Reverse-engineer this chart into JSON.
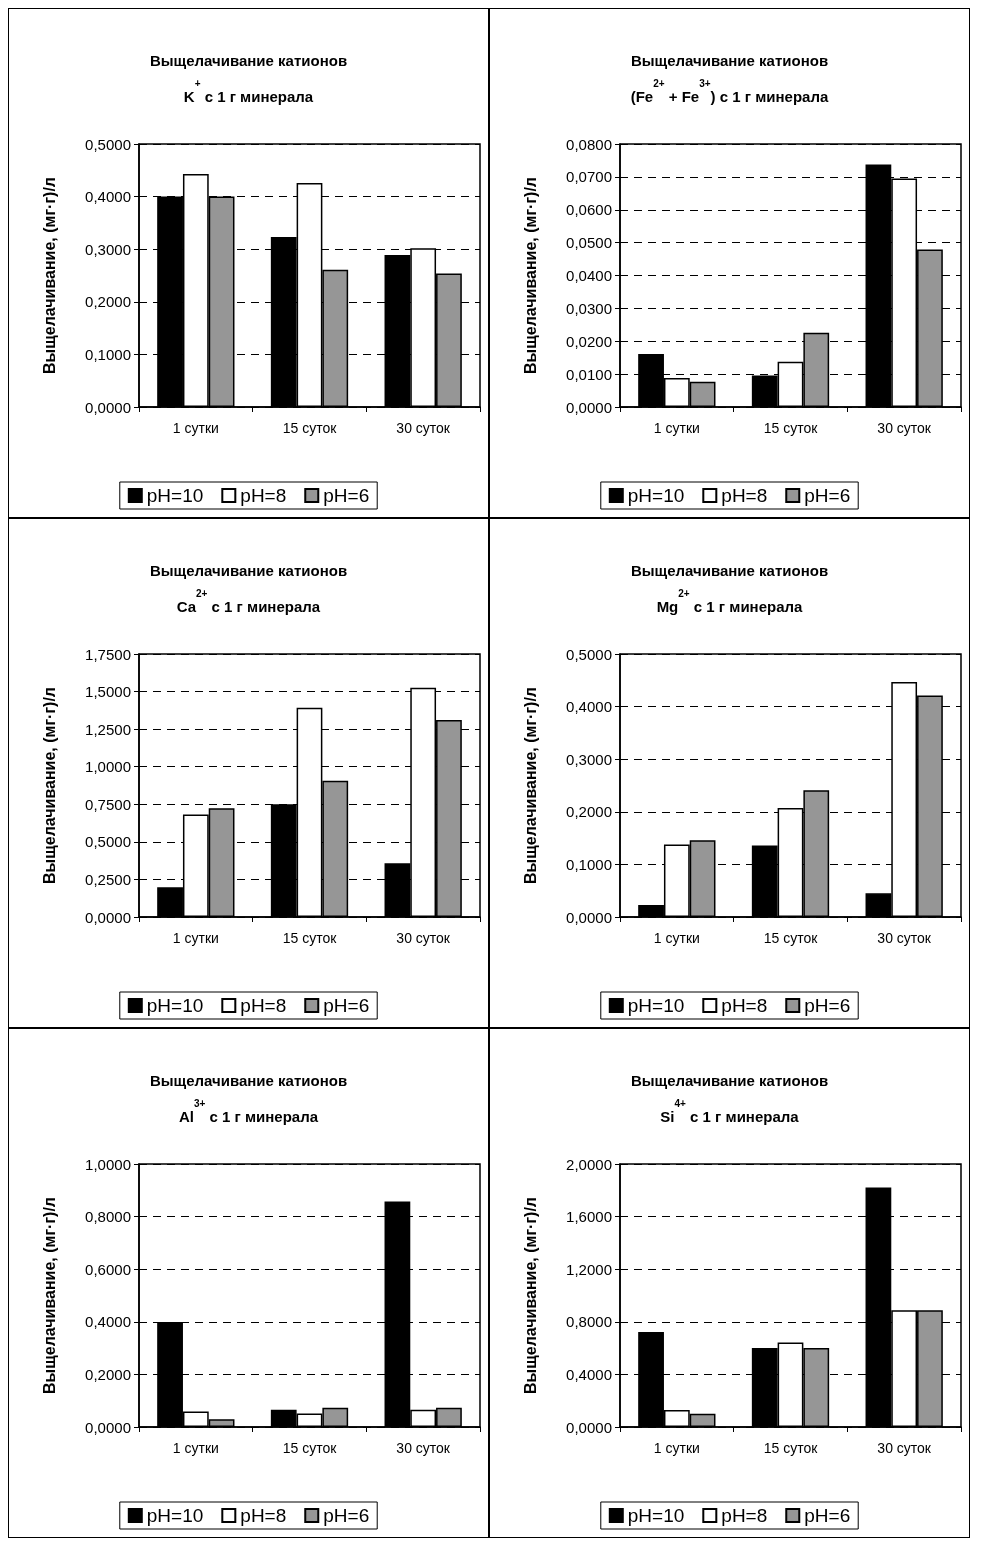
{
  "chart_data": [
    {
      "type": "bar",
      "title": "Выщелачивание катионов\nK$^{+}$ с 1 г минерала",
      "ylabel": "Выщелачивание, (мг·г)/л",
      "categories": [
        "1 сутки",
        "15 суток",
        "30 суток"
      ],
      "series": [
        {
          "name": "pH=10",
          "color": "#000000",
          "values": [
            0.4,
            0.323,
            0.289
          ]
        },
        {
          "name": "pH=8",
          "color": "#ffffff",
          "values": [
            0.443,
            0.426,
            0.302
          ]
        },
        {
          "name": "pH=6",
          "color": "#969696",
          "values": [
            0.4,
            0.261,
            0.254
          ]
        }
      ],
      "ylim": [
        0,
        0.5
      ],
      "yticks": [
        {
          "value": 0,
          "label": "0,0000"
        },
        {
          "value": 0.1,
          "label": "0,1000"
        },
        {
          "value": 0.2,
          "label": "0,2000"
        },
        {
          "value": 0.3,
          "label": "0,3000"
        },
        {
          "value": 0.4,
          "label": "0,4000"
        },
        {
          "value": 0.5,
          "label": "0,5000"
        }
      ],
      "grid": "y",
      "legend": "bottom"
    },
    {
      "type": "bar",
      "title": "Выщелачивание катионов\n(Fe$^{2+}$ + Fe$^{3+}$) с 1 г минерала",
      "ylabel": "Выщелачивание, (мг·г)/л",
      "categories": [
        "1 сутки",
        "15 суток",
        "30 суток"
      ],
      "series": [
        {
          "name": "pH=10",
          "color": "#000000",
          "values": [
            0.0161,
            0.0096,
            0.0738
          ]
        },
        {
          "name": "pH=8",
          "color": "#ffffff",
          "values": [
            0.0088,
            0.0138,
            0.0695
          ]
        },
        {
          "name": "pH=6",
          "color": "#969696",
          "values": [
            0.0077,
            0.0226,
            0.0479
          ]
        }
      ],
      "ylim": [
        0,
        0.08
      ],
      "yticks": [
        {
          "value": 0,
          "label": "0,0000"
        },
        {
          "value": 0.01,
          "label": "0,0100"
        },
        {
          "value": 0.02,
          "label": "0,0200"
        },
        {
          "value": 0.03,
          "label": "0,0300"
        },
        {
          "value": 0.04,
          "label": "0,0400"
        },
        {
          "value": 0.05,
          "label": "0,0500"
        },
        {
          "value": 0.06,
          "label": "0,0600"
        },
        {
          "value": 0.07,
          "label": "0,0700"
        },
        {
          "value": 0.08,
          "label": "0,0800"
        }
      ],
      "grid": "y",
      "legend": "bottom"
    },
    {
      "type": "bar",
      "title": "Выщелачивание катионов\nCa$^{2+}$ с 1 г минерала",
      "ylabel": "Выщелачивание, (мг·г)/л",
      "categories": [
        "1 сутки",
        "15 суток",
        "30 суток"
      ],
      "series": [
        {
          "name": "pH=10",
          "color": "#000000",
          "values": [
            0.198,
            0.75,
            0.357
          ]
        },
        {
          "name": "pH=8",
          "color": "#ffffff",
          "values": [
            0.682,
            1.393,
            1.525
          ]
        },
        {
          "name": "pH=6",
          "color": "#969696",
          "values": [
            0.723,
            0.907,
            1.311
          ]
        }
      ],
      "ylim": [
        0,
        1.75
      ],
      "yticks": [
        {
          "value": 0,
          "label": "0,0000"
        },
        {
          "value": 0.25,
          "label": "0,2500"
        },
        {
          "value": 0.5,
          "label": "0,5000"
        },
        {
          "value": 0.75,
          "label": "0,7500"
        },
        {
          "value": 1,
          "label": "1,0000"
        },
        {
          "value": 1.25,
          "label": "1,2500"
        },
        {
          "value": 1.5,
          "label": "1,5000"
        },
        {
          "value": 1.75,
          "label": "1,7500"
        }
      ],
      "grid": "y",
      "legend": "bottom"
    },
    {
      "type": "bar",
      "title": "Выщелачивание катионов\nMg$^{2+}$ с 1 г минерала",
      "ylabel": "Выщелачивание, (мг·г)/л",
      "categories": [
        "1 сутки",
        "15 суток",
        "30 суток"
      ],
      "series": [
        {
          "name": "pH=10",
          "color": "#000000",
          "values": [
            0.023,
            0.136,
            0.045
          ]
        },
        {
          "name": "pH=8",
          "color": "#ffffff",
          "values": [
            0.138,
            0.207,
            0.447
          ]
        },
        {
          "name": "pH=6",
          "color": "#969696",
          "values": [
            0.146,
            0.241,
            0.421
          ]
        }
      ],
      "ylim": [
        0,
        0.5
      ],
      "yticks": [
        {
          "value": 0,
          "label": "0,0000"
        },
        {
          "value": 0.1,
          "label": "0,1000"
        },
        {
          "value": 0.2,
          "label": "0,2000"
        },
        {
          "value": 0.3,
          "label": "0,3000"
        },
        {
          "value": 0.4,
          "label": "0,4000"
        },
        {
          "value": 0.5,
          "label": "0,5000"
        }
      ],
      "grid": "y",
      "legend": "bottom"
    },
    {
      "type": "bar",
      "title": "Выщелачивание катионов\nAl$^{3+}$ с 1 г минерала",
      "ylabel": "Выщелачивание, (мг·г)/л",
      "categories": [
        "1 сутки",
        "15 суток",
        "30 суток"
      ],
      "series": [
        {
          "name": "pH=10",
          "color": "#000000",
          "values": [
            0.399,
            0.066,
            0.857
          ]
        },
        {
          "name": "pH=8",
          "color": "#ffffff",
          "values": [
            0.059,
            0.051,
            0.066
          ]
        },
        {
          "name": "pH=6",
          "color": "#969696",
          "values": [
            0.029,
            0.073,
            0.073
          ]
        }
      ],
      "ylim": [
        0,
        1
      ],
      "yticks": [
        {
          "value": 0,
          "label": "0,0000"
        },
        {
          "value": 0.2,
          "label": "0,2000"
        },
        {
          "value": 0.4,
          "label": "0,4000"
        },
        {
          "value": 0.6,
          "label": "0,6000"
        },
        {
          "value": 0.8,
          "label": "0,8000"
        },
        {
          "value": 1,
          "label": "1,0000"
        }
      ],
      "grid": "y",
      "legend": "bottom"
    },
    {
      "type": "bar",
      "title": "Выщелачивание катионов\nSi$^{4+}$ с 1 г минерала",
      "ylabel": "Выщелачивание, (мг·г)/л",
      "categories": [
        "1 сутки",
        "15 суток",
        "30 суток"
      ],
      "series": [
        {
          "name": "pH=10",
          "color": "#000000",
          "values": [
            0.723,
            0.601,
            1.821
          ]
        },
        {
          "name": "pH=8",
          "color": "#ffffff",
          "values": [
            0.13,
            0.642,
            0.887
          ]
        },
        {
          "name": "pH=6",
          "color": "#969696",
          "values": [
            0.101,
            0.601,
            0.887
          ]
        }
      ],
      "ylim": [
        0,
        2
      ],
      "yticks": [
        {
          "value": 0,
          "label": "0,0000"
        },
        {
          "value": 0.4,
          "label": "0,4000"
        },
        {
          "value": 0.8,
          "label": "0,8000"
        },
        {
          "value": 1.2,
          "label": "1,2000"
        },
        {
          "value": 1.6,
          "label": "1,6000"
        },
        {
          "value": 2,
          "label": "2,0000"
        }
      ],
      "grid": "y",
      "legend": "bottom"
    }
  ]
}
